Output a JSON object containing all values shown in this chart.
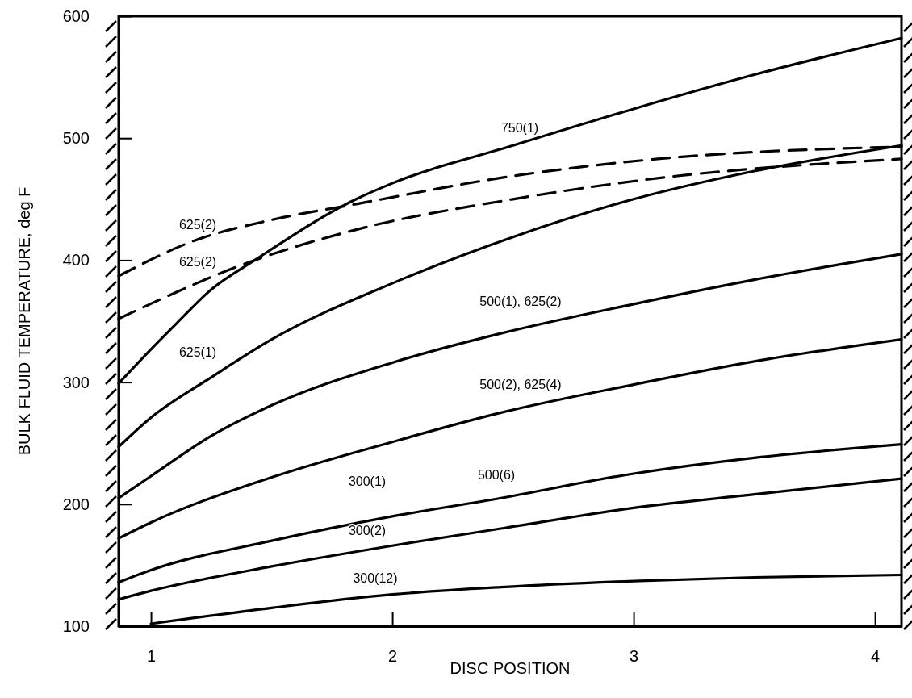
{
  "chart_data": {
    "type": "line",
    "xlabel": "DISC POSITION",
    "ylabel": "BULK FLUID TEMPERATURE, deg F",
    "xlim": [
      0.866,
      4.11
    ],
    "ylim": [
      100,
      600
    ],
    "xticks": [
      1,
      2,
      3,
      4
    ],
    "yticks": [
      100,
      200,
      300,
      400,
      500,
      600
    ],
    "marker": "none",
    "series": [
      {
        "color": "#000000",
        "line_style": "solid",
        "x": [
          0.866,
          1,
          1.11,
          1.25,
          1.43,
          1.85,
          2,
          2.5,
          3,
          3.5,
          4.11
        ],
        "values": [
          299,
          327,
          349,
          376,
          400,
          450,
          463,
          494,
          524,
          552,
          582
        ]
      },
      {
        "color": "#000000",
        "line_style": "dashed",
        "x": [
          0.866,
          1.18,
          1.5,
          1.85,
          2.5,
          3.1,
          4.11
        ],
        "values": [
          387,
          416,
          433,
          446,
          469,
          483,
          493
        ]
      },
      {
        "color": "#000000",
        "line_style": "dashed",
        "x": [
          0.866,
          1.43,
          1.85,
          2.5,
          3.05,
          4.11
        ],
        "values": [
          352,
          400,
          425,
          450,
          466,
          483
        ]
      },
      {
        "color": "#000000",
        "line_style": "solid",
        "x": [
          0.866,
          1,
          1.25,
          1.5,
          2,
          2.5,
          3,
          3.5,
          4.11
        ],
        "values": [
          247,
          271,
          304,
          335,
          381,
          419,
          450,
          473,
          494
        ]
      },
      {
        "color": "#000000",
        "line_style": "solid",
        "x": [
          0.866,
          1,
          1.25,
          1.5,
          2,
          2.45,
          3,
          3.5,
          4.11
        ],
        "values": [
          205,
          223,
          256,
          281,
          316,
          340,
          364,
          384,
          405
        ]
      },
      {
        "color": "#000000",
        "line_style": "solid",
        "x": [
          0.866,
          1,
          1.5,
          2,
          2.45,
          3,
          3.5,
          4.11
        ],
        "values": [
          172,
          185,
          222,
          251,
          275,
          298,
          317,
          335
        ]
      },
      {
        "color": "#000000",
        "line_style": "solid",
        "x": [
          0.866,
          1,
          1.5,
          2,
          2.45,
          3,
          3.5,
          4.11
        ],
        "values": [
          136,
          146,
          170,
          190,
          205,
          225,
          238,
          249
        ]
      },
      {
        "color": "#000000",
        "line_style": "solid",
        "x": [
          0.866,
          1,
          1.5,
          2,
          2.45,
          3,
          3.5,
          4.11
        ],
        "values": [
          122,
          129,
          149,
          166,
          180,
          197,
          208,
          221
        ]
      },
      {
        "color": "#000000",
        "line_style": "solid",
        "x": [
          1,
          1.5,
          2,
          2.45,
          3,
          3.5,
          4.11
        ],
        "values": [
          102,
          115,
          126,
          132,
          137,
          140,
          142
        ]
      }
    ],
    "annotations": [
      "750(1)",
      "625(2)",
      "625(2)",
      "625(1)",
      "500(1), 625(2)",
      "500(2), 625(4)",
      "500(6)",
      "300(1)",
      "300(2)",
      "300(12)"
    ]
  }
}
